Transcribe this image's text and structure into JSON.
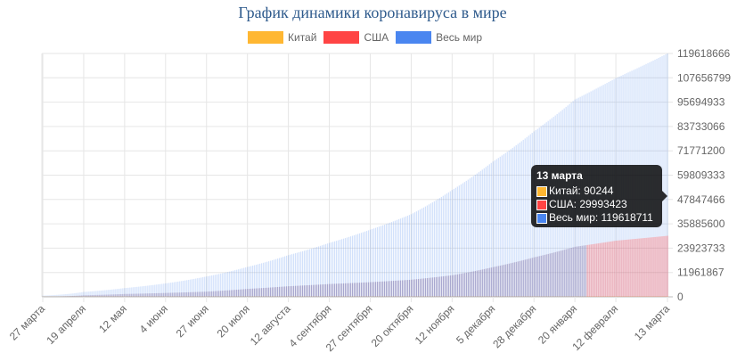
{
  "chart_data": {
    "type": "bar",
    "title": "График динамики коронавируса в мире",
    "legend_position": "top",
    "grid": true,
    "x": [
      "27 марта",
      "19 апреля",
      "12 мая",
      "4 июня",
      "27 июня",
      "20 июля",
      "12 августа",
      "4 сентября",
      "27 сентября",
      "20 октября",
      "12 ноября",
      "5 декабря",
      "28 декабря",
      "20 января",
      "12 февраля",
      "13 марта"
    ],
    "x_day_offsets": [
      0,
      23,
      46,
      69,
      92,
      115,
      138,
      161,
      184,
      207,
      230,
      253,
      276,
      299,
      322,
      351
    ],
    "series": [
      {
        "name": "Китай",
        "color": "#ffb732",
        "values": [
          82000,
          82700,
          82900,
          83000,
          83500,
          83700,
          84700,
          85100,
          85400,
          85700,
          86300,
          86600,
          87000,
          88600,
          89700,
          90244
        ]
      },
      {
        "name": "США",
        "color": "#ff4444",
        "values": [
          100000,
          760000,
          1390000,
          1900000,
          2550000,
          3900000,
          5200000,
          6300000,
          7200000,
          8400000,
          10600000,
          14600000,
          19400000,
          24600000,
          27600000,
          29993423
        ]
      },
      {
        "name": "Весь мир",
        "color": "#4a86f0",
        "values": [
          590000,
          2400000,
          4300000,
          6600000,
          10000000,
          14700000,
          20500000,
          26500000,
          33000000,
          40600000,
          52500000,
          66500000,
          81300000,
          97000000,
          107500000,
          119618711
        ]
      }
    ],
    "yticks": [
      0,
      11961867,
      23923733,
      35885600,
      47847466,
      59809333,
      71771200,
      83733066,
      95694933,
      107656799,
      119618666
    ],
    "ylim": [
      0,
      119618666
    ],
    "tooltip": {
      "title": "13 марта",
      "lines": [
        "Китай: 90244",
        "США: 29993423",
        "Весь мир: 119618711"
      ]
    }
  }
}
